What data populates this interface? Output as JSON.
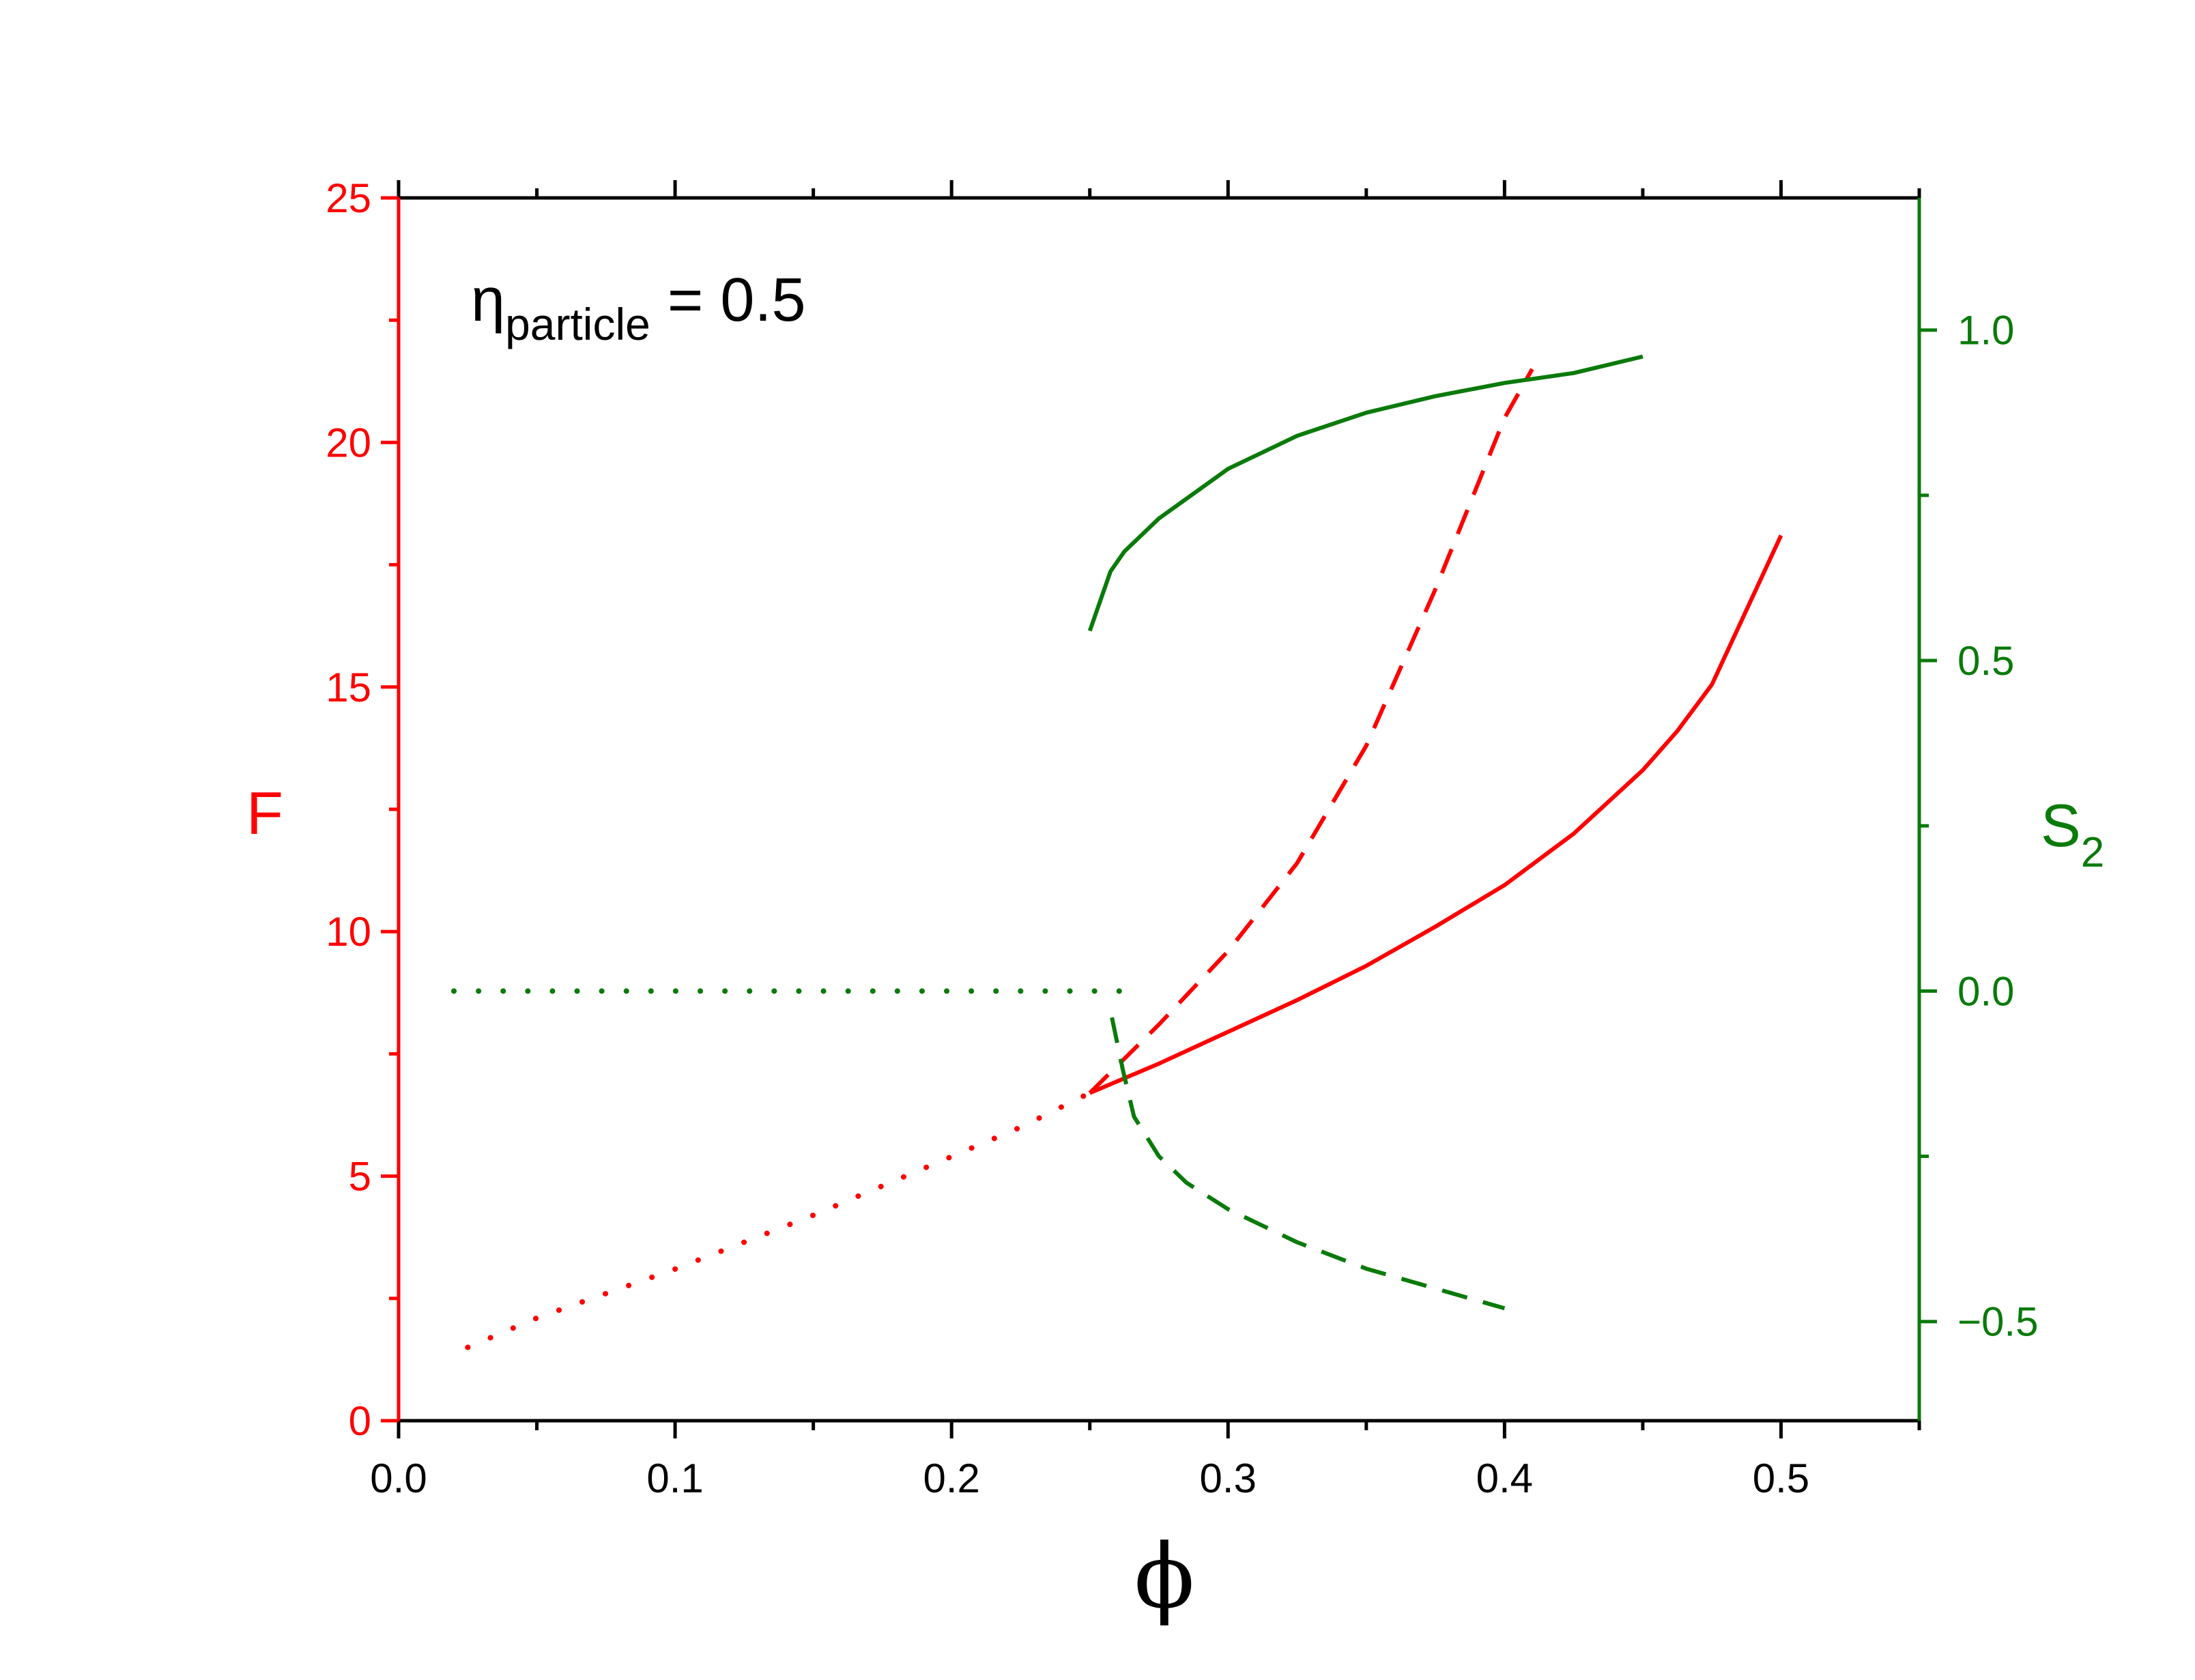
{
  "colors": {
    "left": "#ff0000",
    "right": "#0a7a0a",
    "frame": "#000000"
  },
  "chart_data": {
    "type": "line",
    "annotation": {
      "symbol": "η",
      "subscript": "particle",
      "suffix": " = 0.5"
    },
    "x_axis": {
      "label": "ϕ",
      "range": [
        0,
        0.55
      ],
      "ticks": [
        0.0,
        0.1,
        0.2,
        0.3,
        0.4,
        0.5
      ],
      "tick_labels": [
        "0.0",
        "0.1",
        "0.2",
        "0.3",
        "0.4",
        "0.5"
      ]
    },
    "y_axis_left": {
      "label": "F",
      "range": [
        0,
        25
      ],
      "ticks": [
        0,
        5,
        10,
        15,
        20,
        25
      ],
      "tick_labels": [
        "0",
        "5",
        "10",
        "15",
        "20",
        "25"
      ]
    },
    "y_axis_right": {
      "label": "S",
      "label_sub": "2",
      "range": [
        -0.65,
        1.2
      ],
      "ticks": [
        -0.5,
        0.0,
        0.5,
        1.0
      ],
      "tick_labels": [
        "−0.5",
        "0.0",
        "0.5",
        "1.0"
      ]
    },
    "series": [
      {
        "axis": "left",
        "style": "dotted",
        "color": "#ff0000",
        "x": [
          0.025,
          0.05,
          0.075,
          0.1,
          0.125,
          0.15,
          0.175,
          0.2,
          0.225,
          0.25
        ],
        "y": [
          1.5,
          2.1,
          2.6,
          3.1,
          3.65,
          4.2,
          4.8,
          5.4,
          6.0,
          6.7
        ]
      },
      {
        "axis": "left",
        "style": "solid",
        "color": "#ff0000",
        "x": [
          0.25,
          0.275,
          0.3,
          0.325,
          0.35,
          0.375,
          0.4,
          0.425,
          0.45,
          0.4625,
          0.475,
          0.5
        ],
        "y": [
          6.7,
          7.3,
          7.95,
          8.6,
          9.3,
          10.1,
          10.95,
          12.0,
          13.3,
          14.1,
          15.05,
          18.1
        ]
      },
      {
        "axis": "left",
        "style": "dashed",
        "color": "#ff0000",
        "x": [
          0.25,
          0.275,
          0.3,
          0.325,
          0.35,
          0.375,
          0.4,
          0.41
        ],
        "y": [
          6.7,
          8.1,
          9.6,
          11.4,
          13.8,
          17.0,
          20.5,
          21.5
        ]
      },
      {
        "axis": "right",
        "style": "solid",
        "color": "#0a7a0a",
        "x": [
          0.25,
          0.2575,
          0.2625,
          0.275,
          0.3,
          0.325,
          0.35,
          0.375,
          0.4,
          0.425,
          0.45
        ],
        "y": [
          0.545,
          0.635,
          0.665,
          0.715,
          0.79,
          0.84,
          0.875,
          0.9,
          0.92,
          0.935,
          0.96
        ]
      },
      {
        "axis": "right",
        "style": "dashed",
        "color": "#0a7a0a",
        "x": [
          0.258,
          0.262,
          0.266,
          0.275,
          0.285,
          0.3,
          0.325,
          0.35,
          0.375,
          0.4
        ],
        "y": [
          -0.04,
          -0.12,
          -0.19,
          -0.25,
          -0.29,
          -0.33,
          -0.38,
          -0.42,
          -0.45,
          -0.48
        ]
      },
      {
        "axis": "right",
        "style": "dotted",
        "color": "#0a7a0a",
        "x": [
          0.02,
          0.265
        ],
        "y": [
          0.0,
          0.0
        ]
      }
    ]
  }
}
